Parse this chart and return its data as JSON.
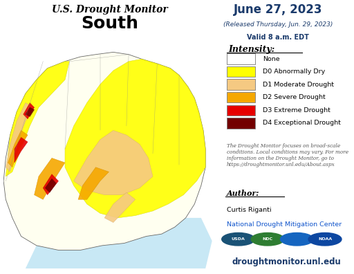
{
  "title_line1": "U.S. Drought Monitor",
  "title_line2": "South",
  "date_line1": "June 27, 2023",
  "date_line2": "(Released Thursday, Jun. 29, 2023)",
  "date_line3": "Valid 8 a.m. EDT",
  "intensity_label": "Intensity:",
  "legend_items": [
    {
      "label": "None",
      "color": "#ffffff"
    },
    {
      "label": "D0 Abnormally Dry",
      "color": "#ffff00"
    },
    {
      "label": "D1 Moderate Drought",
      "color": "#f5c982"
    },
    {
      "label": "D2 Severe Drought",
      "color": "#f5a800"
    },
    {
      "label": "D3 Extreme Drought",
      "color": "#e60000"
    },
    {
      "label": "D4 Exceptional Drought",
      "color": "#730000"
    }
  ],
  "note_text": "The Drought Monitor focuses on broad-scale\nconditions. Local conditions may vary. For more\ninformation on the Drought Monitor, go to\nhttps://droughtmonitor.unl.edu/About.aspx",
  "author_label": "Author:",
  "author_name": "Curtis Riganti",
  "author_org": "National Drought Mitigation Center",
  "website": "droughtmonitor.unl.edu",
  "bg_color": "#ffffff"
}
